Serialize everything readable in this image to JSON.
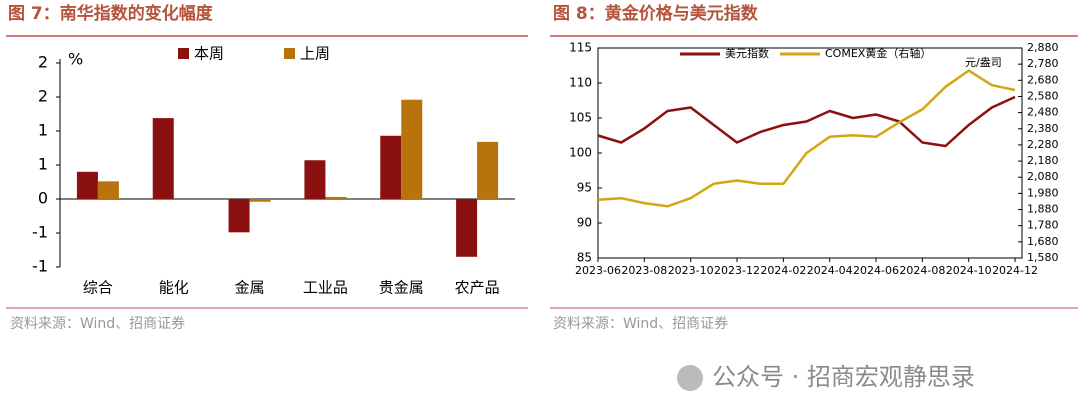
{
  "chart_data": [
    {
      "type": "bar",
      "title": "图 7：南华指数的变化幅度",
      "y_label": "%",
      "source": "资料来源：Wind、招商证券",
      "categories": [
        "综合",
        "能化",
        "金属",
        "工业品",
        "贵金属",
        "农产品"
      ],
      "series": [
        {
          "name": "本周",
          "color": "#8b1111",
          "values": [
            0.4,
            1.19,
            -0.49,
            0.57,
            0.93,
            -0.85
          ]
        },
        {
          "name": "上周",
          "color": "#b8730c",
          "values": [
            0.26,
            -0.01,
            -0.04,
            0.03,
            1.46,
            0.84
          ]
        }
      ],
      "ylim": [
        -1,
        2
      ],
      "yticks": [
        {
          "value": -1,
          "label": "-1"
        },
        {
          "value": -0.5,
          "label": "-1"
        },
        0,
        {
          "value": 0.5,
          "label": "1"
        },
        1,
        {
          "value": 1.5,
          "label": "2"
        },
        2
      ],
      "grid": false
    },
    {
      "type": "line",
      "title": "图 8：黄金价格与美元指数",
      "annotation": "元/盎司",
      "source": "资料来源：Wind、招商证券",
      "x": [
        "2023-06",
        "2023-07",
        "2023-08",
        "2023-09",
        "2023-10",
        "2023-11",
        "2023-12",
        "2024-01",
        "2024-02",
        "2024-03",
        "2024-04",
        "2024-05",
        "2024-06",
        "2024-07",
        "2024-08",
        "2024-09",
        "2024-10",
        "2024-11",
        "2024-12"
      ],
      "xticks": [
        "2023-06",
        "2023-08",
        "2023-10",
        "2023-12",
        "2024-02",
        "2024-04",
        "2024-06",
        "2024-08",
        "2024-10",
        "2024-12"
      ],
      "series": [
        {
          "name": "美元指数",
          "color": "#8b1111",
          "values": [
            102.5,
            101.5,
            103.5,
            106,
            106.5,
            104,
            101.5,
            103,
            104,
            104.5,
            106,
            105,
            105.5,
            104.5,
            101.5,
            101,
            104,
            106.5,
            108
          ]
        },
        {
          "name": "COMEX黄金（右轴）",
          "color": "#d4a613",
          "axis": "y2",
          "values": [
            1940,
            1950,
            1920,
            1900,
            1950,
            2040,
            2060,
            2040,
            2040,
            2230,
            2330,
            2340,
            2330,
            2420,
            2500,
            2640,
            2740,
            2650,
            2620
          ]
        }
      ],
      "ylim": [
        85,
        115
      ],
      "yticks": [
        85,
        90,
        95,
        100,
        105,
        110,
        115
      ],
      "y2lim": [
        1580,
        2880
      ],
      "y2ticks": [
        {
          "value": 1580,
          "label": "1,580"
        },
        {
          "value": 1680,
          "label": "1,680"
        },
        {
          "value": 1780,
          "label": "1,780"
        },
        {
          "value": 1880,
          "label": "1,880"
        },
        {
          "value": 1980,
          "label": "1,980"
        },
        {
          "value": 2080,
          "label": "2,080"
        },
        {
          "value": 2180,
          "label": "2,180"
        },
        {
          "value": 2280,
          "label": "2,280"
        },
        {
          "value": 2380,
          "label": "2,380"
        },
        {
          "value": 2480,
          "label": "2,480"
        },
        {
          "value": 2580,
          "label": "2,580"
        },
        {
          "value": 2680,
          "label": "2,680"
        },
        {
          "value": 2780,
          "label": "2,780"
        },
        {
          "value": 2880,
          "label": "2,880"
        }
      ],
      "grid": false
    }
  ],
  "watermark": "公众号 · 招商宏观静思录"
}
